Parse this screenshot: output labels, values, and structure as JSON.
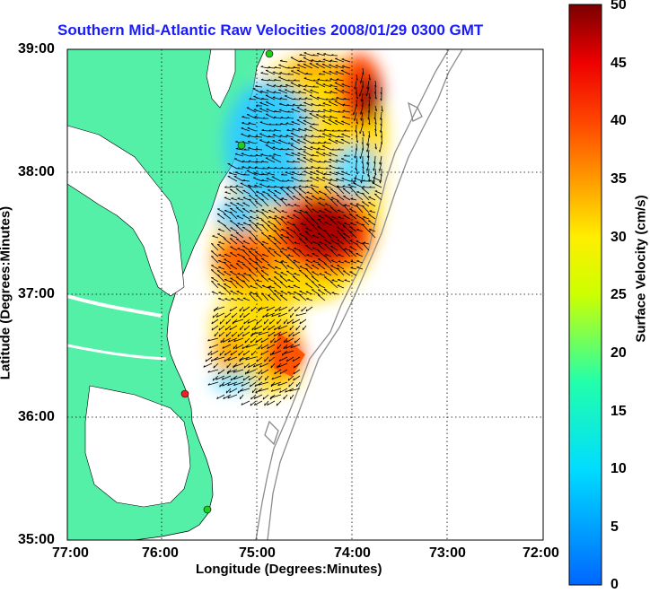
{
  "title": "Southern Mid-Atlantic Raw Velocities 2008/01/29 0300 GMT",
  "xlabel": "Longitude (Degrees:Minutes)",
  "ylabel": "Latitude (Degrees:Minutes)",
  "colorbar_label": "Surface Velocity (cm/s)",
  "x_ticks": [
    "77:00",
    "76:00",
    "75:00",
    "74:00",
    "73:00",
    "72:00"
  ],
  "y_ticks": [
    "39:00",
    "38:00",
    "37:00",
    "36:00",
    "35:00"
  ],
  "colorbar_ticks": [
    "50",
    "45",
    "40",
    "35",
    "30",
    "25",
    "20",
    "15",
    "10",
    "5",
    "0"
  ],
  "colors": {
    "land": "#55f0a8",
    "isobath": "#8c8c8c",
    "arrow": "#000000",
    "station_green": "#22cc22",
    "station_red": "#ee2222",
    "grid": "#000000"
  },
  "chart_data": {
    "type": "heatmap",
    "title": "Southern Mid-Atlantic Raw Velocities 2008/01/29 0300 GMT",
    "xlabel": "Longitude (Degrees:Minutes)",
    "ylabel": "Latitude (Degrees:Minutes)",
    "xlim": [
      "77:00",
      "72:00"
    ],
    "ylim": [
      "35:00",
      "39:00"
    ],
    "colorbar": {
      "label": "Surface Velocity (cm/s)",
      "range": [
        0,
        50
      ]
    },
    "grid": true,
    "hotspots_cm_s": [
      {
        "lon": -74.4,
        "lat": 37.55,
        "speed": 49
      },
      {
        "lon": -73.85,
        "lat": 38.6,
        "speed": 47
      },
      {
        "lon": -74.6,
        "lat": 36.55,
        "speed": 44
      },
      {
        "lon": -74.6,
        "lat": 38.05,
        "speed": 8
      },
      {
        "lon": -75.05,
        "lat": 38.5,
        "speed": 10
      }
    ]
  }
}
